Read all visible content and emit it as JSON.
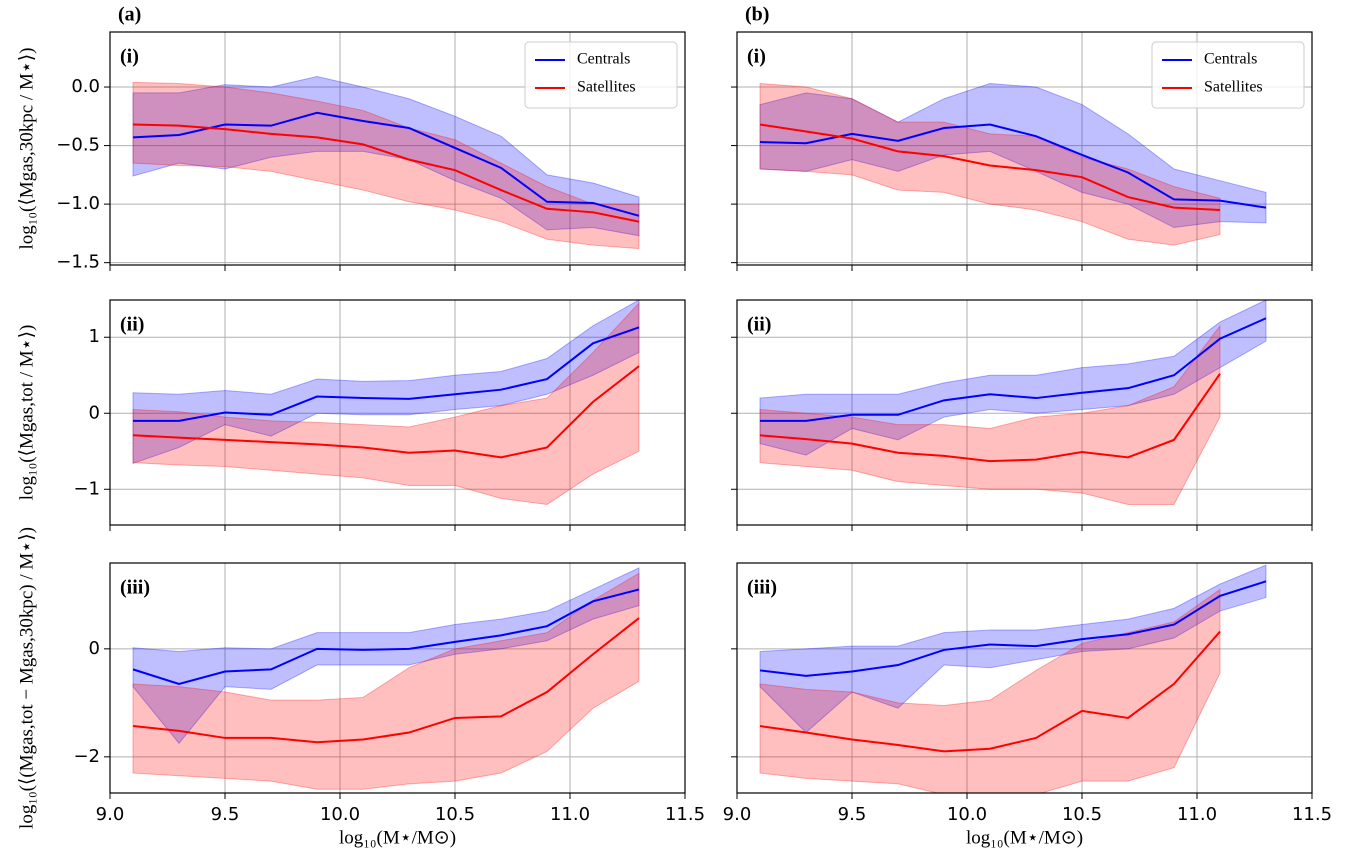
{
  "chart_data": [
    {
      "type": "line",
      "title": "(a)",
      "panel": "(i)",
      "ylabel": "log₁₀(⟨Mgas,30kpc / M⋆⟩)",
      "legend": "upper right",
      "grid": true,
      "xlim": [
        9.0,
        11.5
      ],
      "xticks": [
        9,
        9.5,
        10,
        10.5,
        11,
        11.5
      ],
      "show_xtick_labels": false,
      "ylim": [
        -1.52,
        0.47
      ],
      "yticks": [
        {
          "value": 0,
          "label": "0.0"
        },
        {
          "value": -0.5,
          "label": "−0.5"
        },
        {
          "value": -1,
          "label": "−1.0"
        },
        {
          "value": -1.5,
          "label": "−1.5"
        }
      ],
      "show_ytick_labels": true,
      "series": [
        {
          "name": "Centrals",
          "color": "#0000ff",
          "x": [
            9.1,
            9.3,
            9.5,
            9.7,
            9.9,
            10.1,
            10.3,
            10.5,
            10.7,
            10.9,
            11.1,
            11.3
          ],
          "values": [
            -0.43,
            -0.41,
            -0.32,
            -0.33,
            -0.22,
            -0.29,
            -0.35,
            -0.52,
            -0.69,
            -0.98,
            -0.99,
            -1.1
          ],
          "upper": [
            -0.05,
            -0.05,
            0.02,
            0.0,
            0.09,
            0.0,
            -0.1,
            -0.25,
            -0.42,
            -0.75,
            -0.82,
            -0.94
          ],
          "lower": [
            -0.76,
            -0.65,
            -0.7,
            -0.6,
            -0.55,
            -0.55,
            -0.62,
            -0.8,
            -0.95,
            -1.22,
            -1.2,
            -1.27
          ]
        },
        {
          "name": "Satellites",
          "color": "#ff0000",
          "x": [
            9.1,
            9.3,
            9.5,
            9.7,
            9.9,
            10.1,
            10.3,
            10.5,
            10.7,
            10.9,
            11.1,
            11.3
          ],
          "values": [
            -0.32,
            -0.33,
            -0.36,
            -0.4,
            -0.43,
            -0.49,
            -0.62,
            -0.71,
            -0.88,
            -1.04,
            -1.07,
            -1.15
          ],
          "upper": [
            0.04,
            0.03,
            0.0,
            -0.05,
            -0.12,
            -0.2,
            -0.35,
            -0.45,
            -0.65,
            -0.85,
            -1.0,
            -1.0
          ],
          "lower": [
            -0.65,
            -0.67,
            -0.68,
            -0.72,
            -0.8,
            -0.88,
            -0.98,
            -1.05,
            -1.15,
            -1.3,
            -1.35,
            -1.38
          ]
        }
      ]
    },
    {
      "type": "line",
      "title": "(b)",
      "panel": "(i)",
      "legend": "upper right",
      "grid": true,
      "xlim": [
        9.0,
        11.5
      ],
      "xticks": [
        9,
        9.5,
        10,
        10.5,
        11,
        11.5
      ],
      "show_xtick_labels": false,
      "ylim": [
        -1.52,
        0.47
      ],
      "yticks": [
        0,
        -0.5,
        -1,
        -1.5
      ],
      "show_ytick_labels": false,
      "series": [
        {
          "name": "Centrals",
          "color": "#0000ff",
          "x": [
            9.1,
            9.3,
            9.5,
            9.7,
            9.9,
            10.1,
            10.3,
            10.5,
            10.7,
            10.9,
            11.1,
            11.3
          ],
          "values": [
            -0.47,
            -0.48,
            -0.4,
            -0.46,
            -0.35,
            -0.32,
            -0.42,
            -0.58,
            -0.73,
            -0.96,
            -0.97,
            -1.03
          ],
          "upper": [
            -0.15,
            -0.05,
            -0.1,
            -0.3,
            -0.1,
            0.03,
            0.0,
            -0.15,
            -0.4,
            -0.7,
            -0.8,
            -0.9
          ],
          "lower": [
            -0.7,
            -0.72,
            -0.62,
            -0.72,
            -0.58,
            -0.55,
            -0.72,
            -0.9,
            -1.0,
            -1.2,
            -1.15,
            -1.16
          ]
        },
        {
          "name": "Satellites",
          "color": "#ff0000",
          "x": [
            9.1,
            9.3,
            9.5,
            9.7,
            9.9,
            10.1,
            10.3,
            10.5,
            10.7,
            10.9,
            11.1
          ],
          "values": [
            -0.32,
            -0.38,
            -0.44,
            -0.55,
            -0.59,
            -0.67,
            -0.71,
            -0.77,
            -0.94,
            -1.03,
            -1.05
          ],
          "upper": [
            0.03,
            0.0,
            -0.1,
            -0.3,
            -0.3,
            -0.4,
            -0.42,
            -0.6,
            -0.7,
            -0.85,
            -0.95
          ],
          "lower": [
            -0.7,
            -0.72,
            -0.75,
            -0.88,
            -0.9,
            -1.0,
            -1.05,
            -1.15,
            -1.3,
            -1.35,
            -1.26
          ]
        }
      ]
    },
    {
      "type": "line",
      "panel": "(ii)",
      "ylabel": "log₁₀(⟨Mgas,tot / M⋆⟩)",
      "grid": true,
      "xlim": [
        9.0,
        11.5
      ],
      "xticks": [
        9,
        9.5,
        10,
        10.5,
        11,
        11.5
      ],
      "show_xtick_labels": false,
      "ylim": [
        -1.47,
        1.49
      ],
      "yticks": [
        1,
        0,
        {
          "value": -1,
          "label": "−1"
        }
      ],
      "show_ytick_labels": true,
      "series": [
        {
          "name": "Centrals",
          "color": "#0000ff",
          "x": [
            9.1,
            9.3,
            9.5,
            9.7,
            9.9,
            10.1,
            10.3,
            10.5,
            10.7,
            10.9,
            11.1,
            11.3
          ],
          "values": [
            -0.1,
            -0.1,
            0.01,
            -0.02,
            0.22,
            0.2,
            0.19,
            0.25,
            0.31,
            0.45,
            0.92,
            1.13
          ],
          "upper": [
            0.27,
            0.25,
            0.3,
            0.25,
            0.45,
            0.42,
            0.43,
            0.5,
            0.55,
            0.72,
            1.15,
            1.49
          ],
          "lower": [
            -0.66,
            -0.45,
            -0.15,
            -0.3,
            0.0,
            -0.02,
            -0.02,
            0.05,
            0.1,
            0.25,
            0.5,
            0.8
          ]
        },
        {
          "name": "Satellites",
          "color": "#ff0000",
          "x": [
            9.1,
            9.3,
            9.5,
            9.7,
            9.9,
            10.1,
            10.3,
            10.5,
            10.7,
            10.9,
            11.1,
            11.3
          ],
          "values": [
            -0.29,
            -0.32,
            -0.35,
            -0.38,
            -0.41,
            -0.45,
            -0.52,
            -0.49,
            -0.58,
            -0.45,
            0.15,
            0.62
          ],
          "upper": [
            0.05,
            0.02,
            -0.05,
            -0.1,
            -0.12,
            -0.15,
            -0.18,
            -0.05,
            0.1,
            0.2,
            0.8,
            1.45
          ],
          "lower": [
            -0.65,
            -0.68,
            -0.7,
            -0.75,
            -0.8,
            -0.85,
            -0.95,
            -0.95,
            -1.12,
            -1.2,
            -0.8,
            -0.5
          ]
        }
      ]
    },
    {
      "type": "line",
      "panel": "(ii)",
      "grid": true,
      "xlim": [
        9.0,
        11.5
      ],
      "xticks": [
        9,
        9.5,
        10,
        10.5,
        11,
        11.5
      ],
      "show_xtick_labels": false,
      "ylim": [
        -1.47,
        1.49
      ],
      "yticks": [
        1,
        0,
        -1
      ],
      "show_ytick_labels": false,
      "series": [
        {
          "name": "Centrals",
          "color": "#0000ff",
          "x": [
            9.1,
            9.3,
            9.5,
            9.7,
            9.9,
            10.1,
            10.3,
            10.5,
            10.7,
            10.9,
            11.1,
            11.3
          ],
          "values": [
            -0.1,
            -0.1,
            -0.02,
            -0.02,
            0.17,
            0.25,
            0.2,
            0.27,
            0.33,
            0.5,
            0.98,
            1.25
          ],
          "upper": [
            0.2,
            0.25,
            0.25,
            0.25,
            0.4,
            0.5,
            0.5,
            0.6,
            0.65,
            0.75,
            1.2,
            1.49
          ],
          "lower": [
            -0.4,
            -0.55,
            -0.2,
            -0.35,
            -0.05,
            0.05,
            0.0,
            0.05,
            0.1,
            0.25,
            0.6,
            0.95
          ]
        },
        {
          "name": "Satellites",
          "color": "#ff0000",
          "x": [
            9.1,
            9.3,
            9.5,
            9.7,
            9.9,
            10.1,
            10.3,
            10.5,
            10.7,
            10.9,
            11.1
          ],
          "values": [
            -0.29,
            -0.34,
            -0.4,
            -0.52,
            -0.56,
            -0.63,
            -0.61,
            -0.51,
            -0.58,
            -0.35,
            0.52
          ],
          "upper": [
            0.05,
            0.0,
            -0.05,
            -0.15,
            -0.15,
            -0.2,
            -0.05,
            0.0,
            0.1,
            0.35,
            1.15
          ],
          "lower": [
            -0.65,
            -0.7,
            -0.75,
            -0.9,
            -0.95,
            -1.0,
            -1.0,
            -1.05,
            -1.2,
            -1.2,
            -0.05
          ]
        }
      ]
    },
    {
      "type": "line",
      "panel": "(iii)",
      "ylabel": "log₁₀(⟨(Mgas,tot − Mgas,30kpc) / M⋆⟩)",
      "xlabel": "log₁₀(M⋆/M⊙)",
      "grid": true,
      "xlim": [
        9.0,
        11.5
      ],
      "xticks": [
        {
          "value": 9,
          "label": "9.0"
        },
        9.5,
        {
          "value": 10,
          "label": "10.0"
        },
        10.5,
        {
          "value": 11,
          "label": "11.0"
        },
        11.5
      ],
      "show_xtick_labels": true,
      "ylim": [
        -2.67,
        1.59
      ],
      "yticks": [
        0,
        {
          "value": -2,
          "label": "−2"
        }
      ],
      "show_ytick_labels": true,
      "series": [
        {
          "name": "Centrals",
          "color": "#0000ff",
          "x": [
            9.1,
            9.3,
            9.5,
            9.7,
            9.9,
            10.1,
            10.3,
            10.5,
            10.7,
            10.9,
            11.1,
            11.3
          ],
          "values": [
            -0.38,
            -0.65,
            -0.42,
            -0.38,
            0.0,
            -0.02,
            0.0,
            0.13,
            0.25,
            0.42,
            0.88,
            1.1
          ],
          "upper": [
            0.02,
            -0.05,
            0.02,
            0.0,
            0.3,
            0.3,
            0.3,
            0.45,
            0.55,
            0.7,
            1.1,
            1.5
          ],
          "lower": [
            -0.7,
            -1.75,
            -0.7,
            -0.75,
            -0.3,
            -0.3,
            -0.3,
            -0.1,
            0.0,
            0.15,
            0.55,
            0.8
          ]
        },
        {
          "name": "Satellites",
          "color": "#ff0000",
          "x": [
            9.1,
            9.3,
            9.5,
            9.7,
            9.9,
            10.1,
            10.3,
            10.5,
            10.7,
            10.9,
            11.1,
            11.3
          ],
          "values": [
            -1.43,
            -1.52,
            -1.65,
            -1.65,
            -1.73,
            -1.68,
            -1.55,
            -1.28,
            -1.25,
            -0.8,
            -0.1,
            0.57
          ],
          "upper": [
            -0.65,
            -0.7,
            -0.8,
            -0.95,
            -0.95,
            -0.9,
            -0.35,
            0.0,
            0.15,
            0.3,
            0.9,
            1.4
          ],
          "lower": [
            -2.3,
            -2.35,
            -2.4,
            -2.45,
            -2.6,
            -2.6,
            -2.5,
            -2.45,
            -2.3,
            -1.9,
            -1.1,
            -0.6
          ]
        }
      ]
    },
    {
      "type": "line",
      "panel": "(iii)",
      "xlabel": "log₁₀(M⋆/M⊙)",
      "grid": true,
      "xlim": [
        9.0,
        11.5
      ],
      "xticks": [
        {
          "value": 9,
          "label": "9.0"
        },
        9.5,
        {
          "value": 10,
          "label": "10.0"
        },
        10.5,
        {
          "value": 11,
          "label": "11.0"
        },
        11.5
      ],
      "show_xtick_labels": true,
      "ylim": [
        -2.67,
        1.59
      ],
      "yticks": [
        0,
        -2
      ],
      "show_ytick_labels": false,
      "series": [
        {
          "name": "Centrals",
          "color": "#0000ff",
          "x": [
            9.1,
            9.3,
            9.5,
            9.7,
            9.9,
            10.1,
            10.3,
            10.5,
            10.7,
            10.9,
            11.1,
            11.3
          ],
          "values": [
            -0.4,
            -0.5,
            -0.42,
            -0.3,
            -0.02,
            0.08,
            0.05,
            0.18,
            0.27,
            0.45,
            0.98,
            1.25
          ],
          "upper": [
            -0.05,
            0.0,
            0.05,
            0.05,
            0.3,
            0.35,
            0.35,
            0.45,
            0.55,
            0.75,
            1.2,
            1.55
          ],
          "lower": [
            -0.7,
            -1.55,
            -0.8,
            -1.1,
            -0.3,
            -0.35,
            -0.2,
            -0.05,
            0.0,
            0.2,
            0.7,
            0.95
          ]
        },
        {
          "name": "Satellites",
          "color": "#ff0000",
          "x": [
            9.1,
            9.3,
            9.5,
            9.7,
            9.9,
            10.1,
            10.3,
            10.5,
            10.7,
            10.9,
            11.1
          ],
          "values": [
            -1.43,
            -1.55,
            -1.68,
            -1.78,
            -1.9,
            -1.85,
            -1.65,
            -1.15,
            -1.28,
            -0.65,
            0.32
          ],
          "upper": [
            -0.65,
            -0.75,
            -0.8,
            -1.0,
            -1.05,
            -0.95,
            -0.4,
            0.1,
            0.3,
            0.5,
            1.1
          ],
          "lower": [
            -2.3,
            -2.4,
            -2.45,
            -2.5,
            -2.7,
            -2.7,
            -2.7,
            -2.45,
            -2.45,
            -2.2,
            -0.45
          ]
        }
      ]
    }
  ]
}
